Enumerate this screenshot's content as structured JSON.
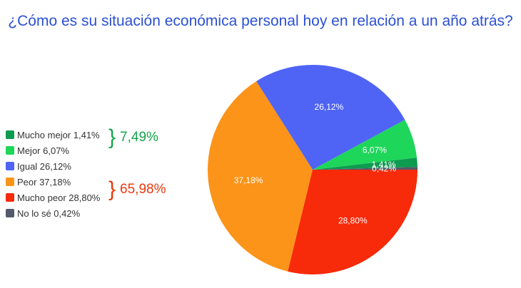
{
  "title": "¿Cómo es su situación económica personal hoy en relación a un año atrás?",
  "chart_data": {
    "type": "pie",
    "categories": [
      "Mucho mejor",
      "Mejor",
      "Igual",
      "Peor",
      "Mucho peor",
      "No lo sé"
    ],
    "values": [
      1.41,
      6.07,
      26.12,
      37.18,
      28.8,
      0.42
    ],
    "value_labels": [
      "1,41%",
      "6,07%",
      "26,12%",
      "37,18%",
      "28,80%",
      "0,42%"
    ],
    "legend_labels": [
      "Mucho mejor 1,41%",
      "Mejor 6,07%",
      "Igual 26,12%",
      "Peor 37,18%",
      "Mucho peor 28,80%",
      "No lo sé 0,42%"
    ],
    "colors": [
      "#0d9b4f",
      "#1ed65a",
      "#4f64f5",
      "#fb9419",
      "#f72a0a",
      "#525a6b"
    ],
    "legend_position": "left",
    "groups": [
      {
        "value": "7,49%",
        "color": "#14a54a",
        "members": [
          "Mucho mejor",
          "Mejor"
        ]
      },
      {
        "value": "65,98%",
        "color": "#e8390d",
        "members": [
          "Peor",
          "Mucho peor"
        ]
      }
    ]
  }
}
